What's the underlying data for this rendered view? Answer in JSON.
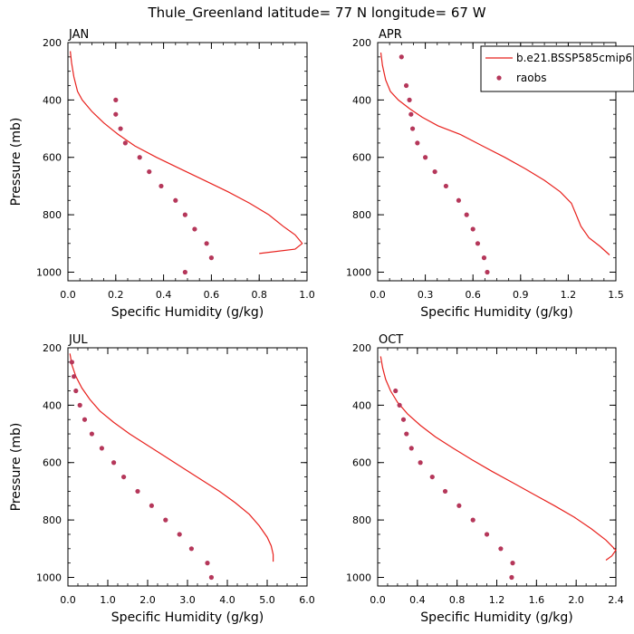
{
  "figure_title": "Thule_Greenland  latitude= 77 N longitude= 67 W",
  "y_axis_label": "Pressure (mb)",
  "x_axis_label": "Specific Humidity (g/kg)",
  "legend": {
    "model_label": "b.e21.BSSP585cmip6",
    "obs_label": "raobs",
    "model_color": "#e8211d",
    "obs_color": "#b5375a"
  },
  "chart_data": [
    {
      "type": "line",
      "panel_label": "JAN",
      "xlim": [
        0,
        1.0
      ],
      "ylim": [
        200,
        1030
      ],
      "y_inverted": true,
      "x_ticks": [
        0.0,
        0.2,
        0.4,
        0.6,
        0.8,
        1.0
      ],
      "x_tick_labels": [
        "0.0",
        "0.2",
        "0.4",
        "0.6",
        "0.8",
        "1.0"
      ],
      "y_ticks": [
        200,
        400,
        600,
        800,
        1000
      ],
      "y_tick_labels": [
        "200",
        "400",
        "600",
        "800",
        "1000"
      ],
      "series": [
        {
          "name": "b.e21.BSSP585cmip6",
          "kind": "line",
          "x": [
            0.01,
            0.015,
            0.025,
            0.04,
            0.06,
            0.1,
            0.15,
            0.21,
            0.28,
            0.37,
            0.47,
            0.57,
            0.67,
            0.76,
            0.84,
            0.9,
            0.95,
            0.98,
            0.95,
            0.8
          ],
          "y": [
            230,
            270,
            320,
            370,
            400,
            440,
            480,
            520,
            560,
            600,
            640,
            680,
            720,
            760,
            800,
            840,
            870,
            900,
            920,
            935
          ]
        },
        {
          "name": "raobs",
          "kind": "scatter",
          "x": [
            0.2,
            0.2,
            0.22,
            0.24,
            0.3,
            0.34,
            0.39,
            0.45,
            0.49,
            0.53,
            0.58,
            0.6,
            0.49
          ],
          "y": [
            400,
            450,
            500,
            550,
            600,
            650,
            700,
            750,
            800,
            850,
            900,
            950,
            1000
          ]
        }
      ]
    },
    {
      "type": "line",
      "panel_label": "APR",
      "xlim": [
        0,
        1.5
      ],
      "ylim": [
        200,
        1030
      ],
      "y_inverted": true,
      "x_ticks": [
        0.0,
        0.3,
        0.6,
        0.9,
        1.2,
        1.5
      ],
      "x_tick_labels": [
        "0.0",
        "0.3",
        "0.6",
        "0.9",
        "1.2",
        "1.5"
      ],
      "y_ticks": [
        200,
        400,
        600,
        800,
        1000
      ],
      "y_tick_labels": [
        "200",
        "400",
        "600",
        "800",
        "1000"
      ],
      "series": [
        {
          "name": "b.e21.BSSP585cmip6",
          "kind": "line",
          "x": [
            0.02,
            0.03,
            0.05,
            0.08,
            0.13,
            0.2,
            0.28,
            0.38,
            0.52,
            0.66,
            0.8,
            0.93,
            1.05,
            1.15,
            1.22,
            1.25,
            1.28,
            1.33,
            1.4,
            1.46
          ],
          "y": [
            235,
            280,
            330,
            370,
            400,
            430,
            460,
            490,
            520,
            560,
            600,
            640,
            680,
            720,
            760,
            800,
            840,
            880,
            910,
            940
          ]
        },
        {
          "name": "raobs",
          "kind": "scatter",
          "x": [
            0.15,
            0.18,
            0.2,
            0.21,
            0.22,
            0.25,
            0.3,
            0.36,
            0.43,
            0.51,
            0.56,
            0.6,
            0.63,
            0.67,
            0.69
          ],
          "y": [
            250,
            350,
            400,
            450,
            500,
            550,
            600,
            650,
            700,
            750,
            800,
            850,
            900,
            950,
            1000
          ]
        }
      ]
    },
    {
      "type": "line",
      "panel_label": "JUL",
      "xlim": [
        0,
        6.0
      ],
      "ylim": [
        200,
        1030
      ],
      "y_inverted": true,
      "x_ticks": [
        0.0,
        1.0,
        2.0,
        3.0,
        4.0,
        5.0,
        6.0
      ],
      "x_tick_labels": [
        "0.0",
        "1.0",
        "2.0",
        "3.0",
        "4.0",
        "5.0",
        "6.0"
      ],
      "y_ticks": [
        200,
        400,
        600,
        800,
        1000
      ],
      "y_tick_labels": [
        "200",
        "400",
        "600",
        "800",
        "1000"
      ],
      "series": [
        {
          "name": "b.e21.BSSP585cmip6",
          "kind": "line",
          "x": [
            0.05,
            0.1,
            0.2,
            0.35,
            0.55,
            0.8,
            1.15,
            1.55,
            2.0,
            2.45,
            2.9,
            3.35,
            3.8,
            4.2,
            4.55,
            4.8,
            5.0,
            5.1,
            5.15,
            5.15
          ],
          "y": [
            220,
            260,
            300,
            340,
            380,
            420,
            460,
            500,
            540,
            580,
            620,
            660,
            700,
            740,
            780,
            820,
            860,
            890,
            920,
            945
          ]
        },
        {
          "name": "raobs",
          "kind": "scatter",
          "x": [
            0.1,
            0.15,
            0.2,
            0.3,
            0.42,
            0.6,
            0.85,
            1.15,
            1.4,
            1.75,
            2.1,
            2.45,
            2.8,
            3.1,
            3.5,
            3.6
          ],
          "y": [
            250,
            300,
            350,
            400,
            450,
            500,
            550,
            600,
            650,
            700,
            750,
            800,
            850,
            900,
            950,
            1000
          ]
        }
      ]
    },
    {
      "type": "line",
      "panel_label": "OCT",
      "xlim": [
        0,
        2.4
      ],
      "ylim": [
        200,
        1030
      ],
      "y_inverted": true,
      "x_ticks": [
        0.0,
        0.4,
        0.8,
        1.2,
        1.6,
        2.0,
        2.4
      ],
      "x_tick_labels": [
        "0.0",
        "0.4",
        "0.8",
        "1.2",
        "1.6",
        "2.0",
        "2.4"
      ],
      "y_ticks": [
        200,
        400,
        600,
        800,
        1000
      ],
      "y_tick_labels": [
        "200",
        "400",
        "600",
        "800",
        "1000"
      ],
      "series": [
        {
          "name": "b.e21.BSSP585cmip6",
          "kind": "line",
          "x": [
            0.03,
            0.05,
            0.08,
            0.13,
            0.2,
            0.3,
            0.43,
            0.58,
            0.76,
            0.95,
            1.15,
            1.36,
            1.57,
            1.78,
            1.98,
            2.15,
            2.3,
            2.4,
            2.36,
            2.3
          ],
          "y": [
            230,
            270,
            310,
            350,
            390,
            430,
            470,
            510,
            550,
            590,
            630,
            670,
            710,
            750,
            790,
            830,
            870,
            905,
            925,
            940
          ]
        },
        {
          "name": "raobs",
          "kind": "scatter",
          "x": [
            0.18,
            0.22,
            0.26,
            0.29,
            0.34,
            0.43,
            0.55,
            0.68,
            0.82,
            0.96,
            1.1,
            1.24,
            1.36,
            1.35
          ],
          "y": [
            350,
            400,
            450,
            500,
            550,
            600,
            650,
            700,
            750,
            800,
            850,
            900,
            950,
            1000
          ]
        }
      ]
    }
  ]
}
